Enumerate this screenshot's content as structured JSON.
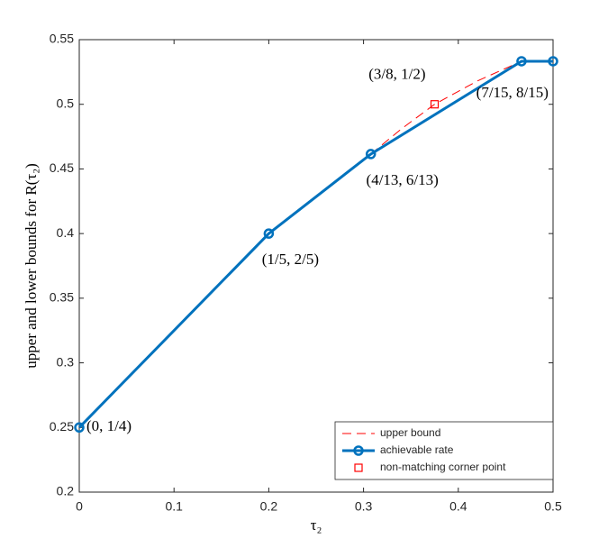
{
  "chart_data": {
    "type": "line",
    "xlabel": "τ₂",
    "ylabel": "upper and lower bounds for R(τ₂)",
    "xlim": [
      0,
      0.5
    ],
    "ylim": [
      0.2,
      0.55
    ],
    "xticks": [
      0,
      0.1,
      0.2,
      0.3,
      0.4,
      0.5
    ],
    "yticks": [
      0.2,
      0.25,
      0.3,
      0.35,
      0.4,
      0.45,
      0.5,
      0.55
    ],
    "grid": false,
    "legend_position": "southeast",
    "series": [
      {
        "name": "upper bound",
        "color": "#ff0000",
        "style": "dashed",
        "x": [
          0.3077,
          0.34,
          0.375,
          0.42,
          0.4667
        ],
        "values": [
          0.4615,
          0.481,
          0.5,
          0.518,
          0.5333
        ]
      },
      {
        "name": "achievable rate",
        "color": "#0072bd",
        "style": "solid-circle",
        "x": [
          0,
          0.2,
          0.3077,
          0.4667,
          0.5
        ],
        "values": [
          0.25,
          0.4,
          0.4615,
          0.5333,
          0.5333
        ]
      },
      {
        "name": "non-matching corner point",
        "color": "#ff0000",
        "style": "square",
        "x": [
          0.375
        ],
        "values": [
          0.5
        ]
      }
    ],
    "annotations": [
      "(0, 1/4)",
      "(1/5, 2/5)",
      "(4/13, 6/13)",
      "(7/15, 8/15)",
      "(3/8, 1/2)"
    ]
  }
}
